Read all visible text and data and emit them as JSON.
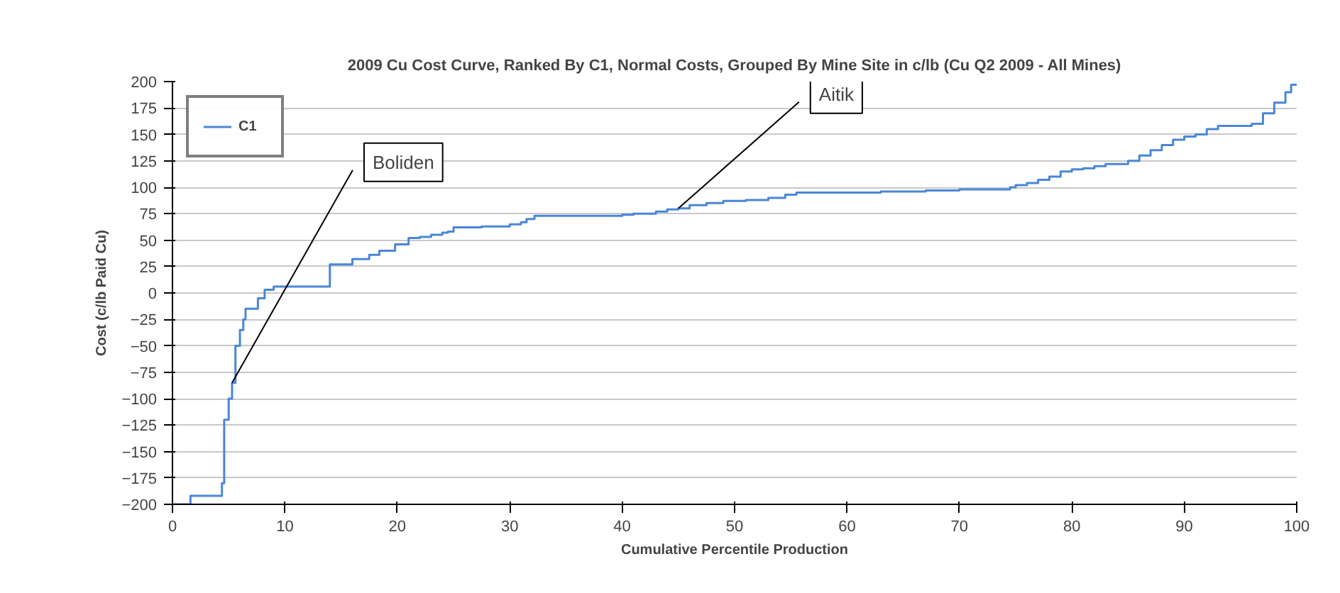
{
  "chart_data": {
    "type": "step",
    "title": "2009 Cu Cost Curve, Ranked By C1, Normal Costs, Grouped By Mine Site in c/lb (Cu Q2 2009 - All Mines)",
    "xlabel": "Cumulative Percentile Production",
    "ylabel": "Cost (c/lb Paid Cu)",
    "series": [
      {
        "name": "C1",
        "color": "#4a86d8",
        "x": [
          0,
          1.6,
          4.4,
          4.6,
          5,
          5.3,
          5.6,
          6,
          6.3,
          6.5,
          7.6,
          8.2,
          9,
          14,
          16,
          17.5,
          18.4,
          19.8,
          21,
          22,
          23,
          24,
          24.5,
          25,
          27.5,
          30,
          31,
          31.5,
          32.2,
          40,
          41,
          43,
          44,
          45,
          46,
          47.5,
          49,
          51,
          53,
          54.5,
          55.5,
          63,
          67,
          70,
          74.5,
          75,
          76,
          77,
          78,
          79,
          80,
          81,
          82,
          83,
          85,
          86,
          87,
          88,
          89,
          90,
          91,
          92,
          93,
          96,
          97,
          98,
          99,
          99.5,
          100
        ],
        "values": [
          -200,
          -192,
          -180,
          -120,
          -100,
          -85,
          -50,
          -35,
          -25,
          -15,
          -5,
          3,
          6,
          27,
          32,
          36,
          40,
          46,
          52,
          53,
          55,
          57,
          58,
          62,
          63,
          65,
          67,
          70,
          73,
          74,
          75,
          77,
          79,
          80,
          83,
          85,
          87,
          88,
          90,
          93,
          95,
          96,
          97,
          98,
          100,
          102,
          104,
          107,
          110,
          115,
          117,
          118,
          120,
          122,
          125,
          130,
          135,
          140,
          145,
          148,
          150,
          155,
          158,
          160,
          170,
          180,
          190,
          197,
          197
        ]
      }
    ],
    "annotations": [
      {
        "text": "Boliden",
        "x": 5.3,
        "y": -85
      },
      {
        "text": "Aitik",
        "x": 45,
        "y": 80
      }
    ],
    "xlim": [
      0,
      100
    ],
    "xticks": [
      0,
      10,
      20,
      30,
      40,
      50,
      60,
      70,
      80,
      90,
      100
    ],
    "ylim": [
      -200,
      200
    ],
    "yticks": [
      -200,
      -175,
      -150,
      -125,
      -100,
      -75,
      -50,
      -25,
      0,
      25,
      50,
      75,
      100,
      125,
      150,
      175,
      200
    ],
    "grid": "y",
    "legend": "top left"
  }
}
